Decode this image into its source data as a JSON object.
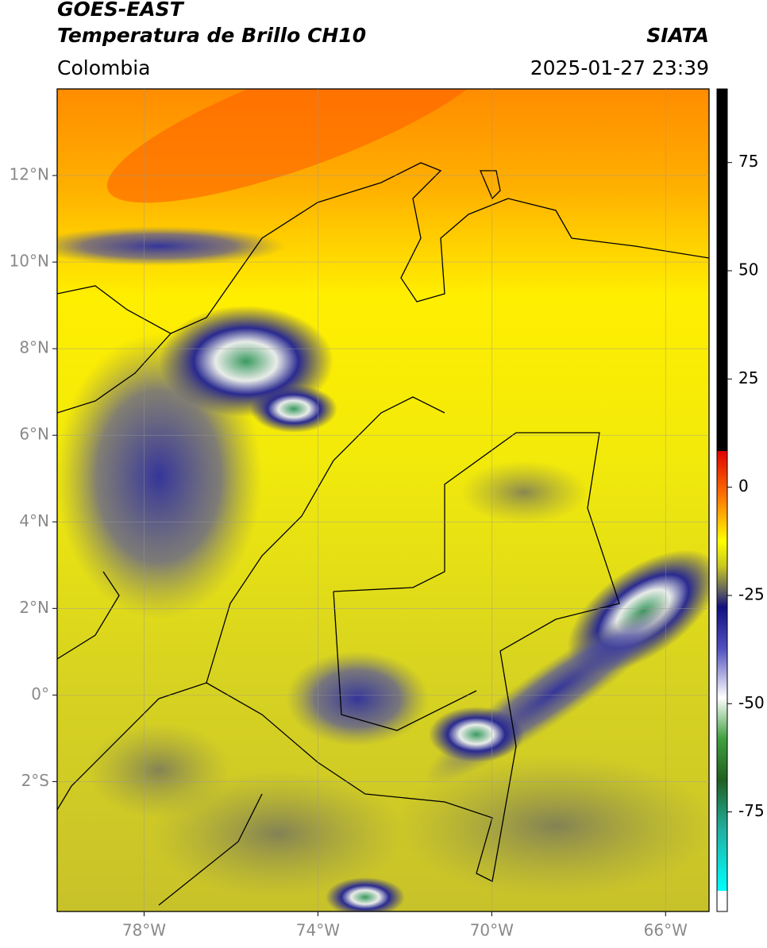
{
  "header": {
    "title": "GOES-EAST",
    "subtitle": "Temperatura de Brillo CH10",
    "source": "SIATA",
    "region": "Colombia",
    "datetime": "2025-01-27 23:39"
  },
  "map": {
    "xlim": [
      -80,
      -65
    ],
    "ylim": [
      -5,
      14
    ],
    "grid": true,
    "xticks": [
      {
        "value": -78,
        "label": "78°W"
      },
      {
        "value": -74,
        "label": "74°W"
      },
      {
        "value": -70,
        "label": "70°W"
      },
      {
        "value": -66,
        "label": "66°W"
      }
    ],
    "yticks": [
      {
        "value": 12,
        "label": "12°N"
      },
      {
        "value": 10,
        "label": "10°N"
      },
      {
        "value": 8,
        "label": "8°N"
      },
      {
        "value": 6,
        "label": "6°N"
      },
      {
        "value": 4,
        "label": "4°N"
      },
      {
        "value": 2,
        "label": "2°N"
      },
      {
        "value": 0,
        "label": "0°"
      },
      {
        "value": -2,
        "label": "2°S"
      }
    ]
  },
  "colorbar": {
    "lim": [
      -98,
      92
    ],
    "ticks": [
      75,
      50,
      25,
      0,
      -25,
      -50,
      -75
    ]
  }
}
